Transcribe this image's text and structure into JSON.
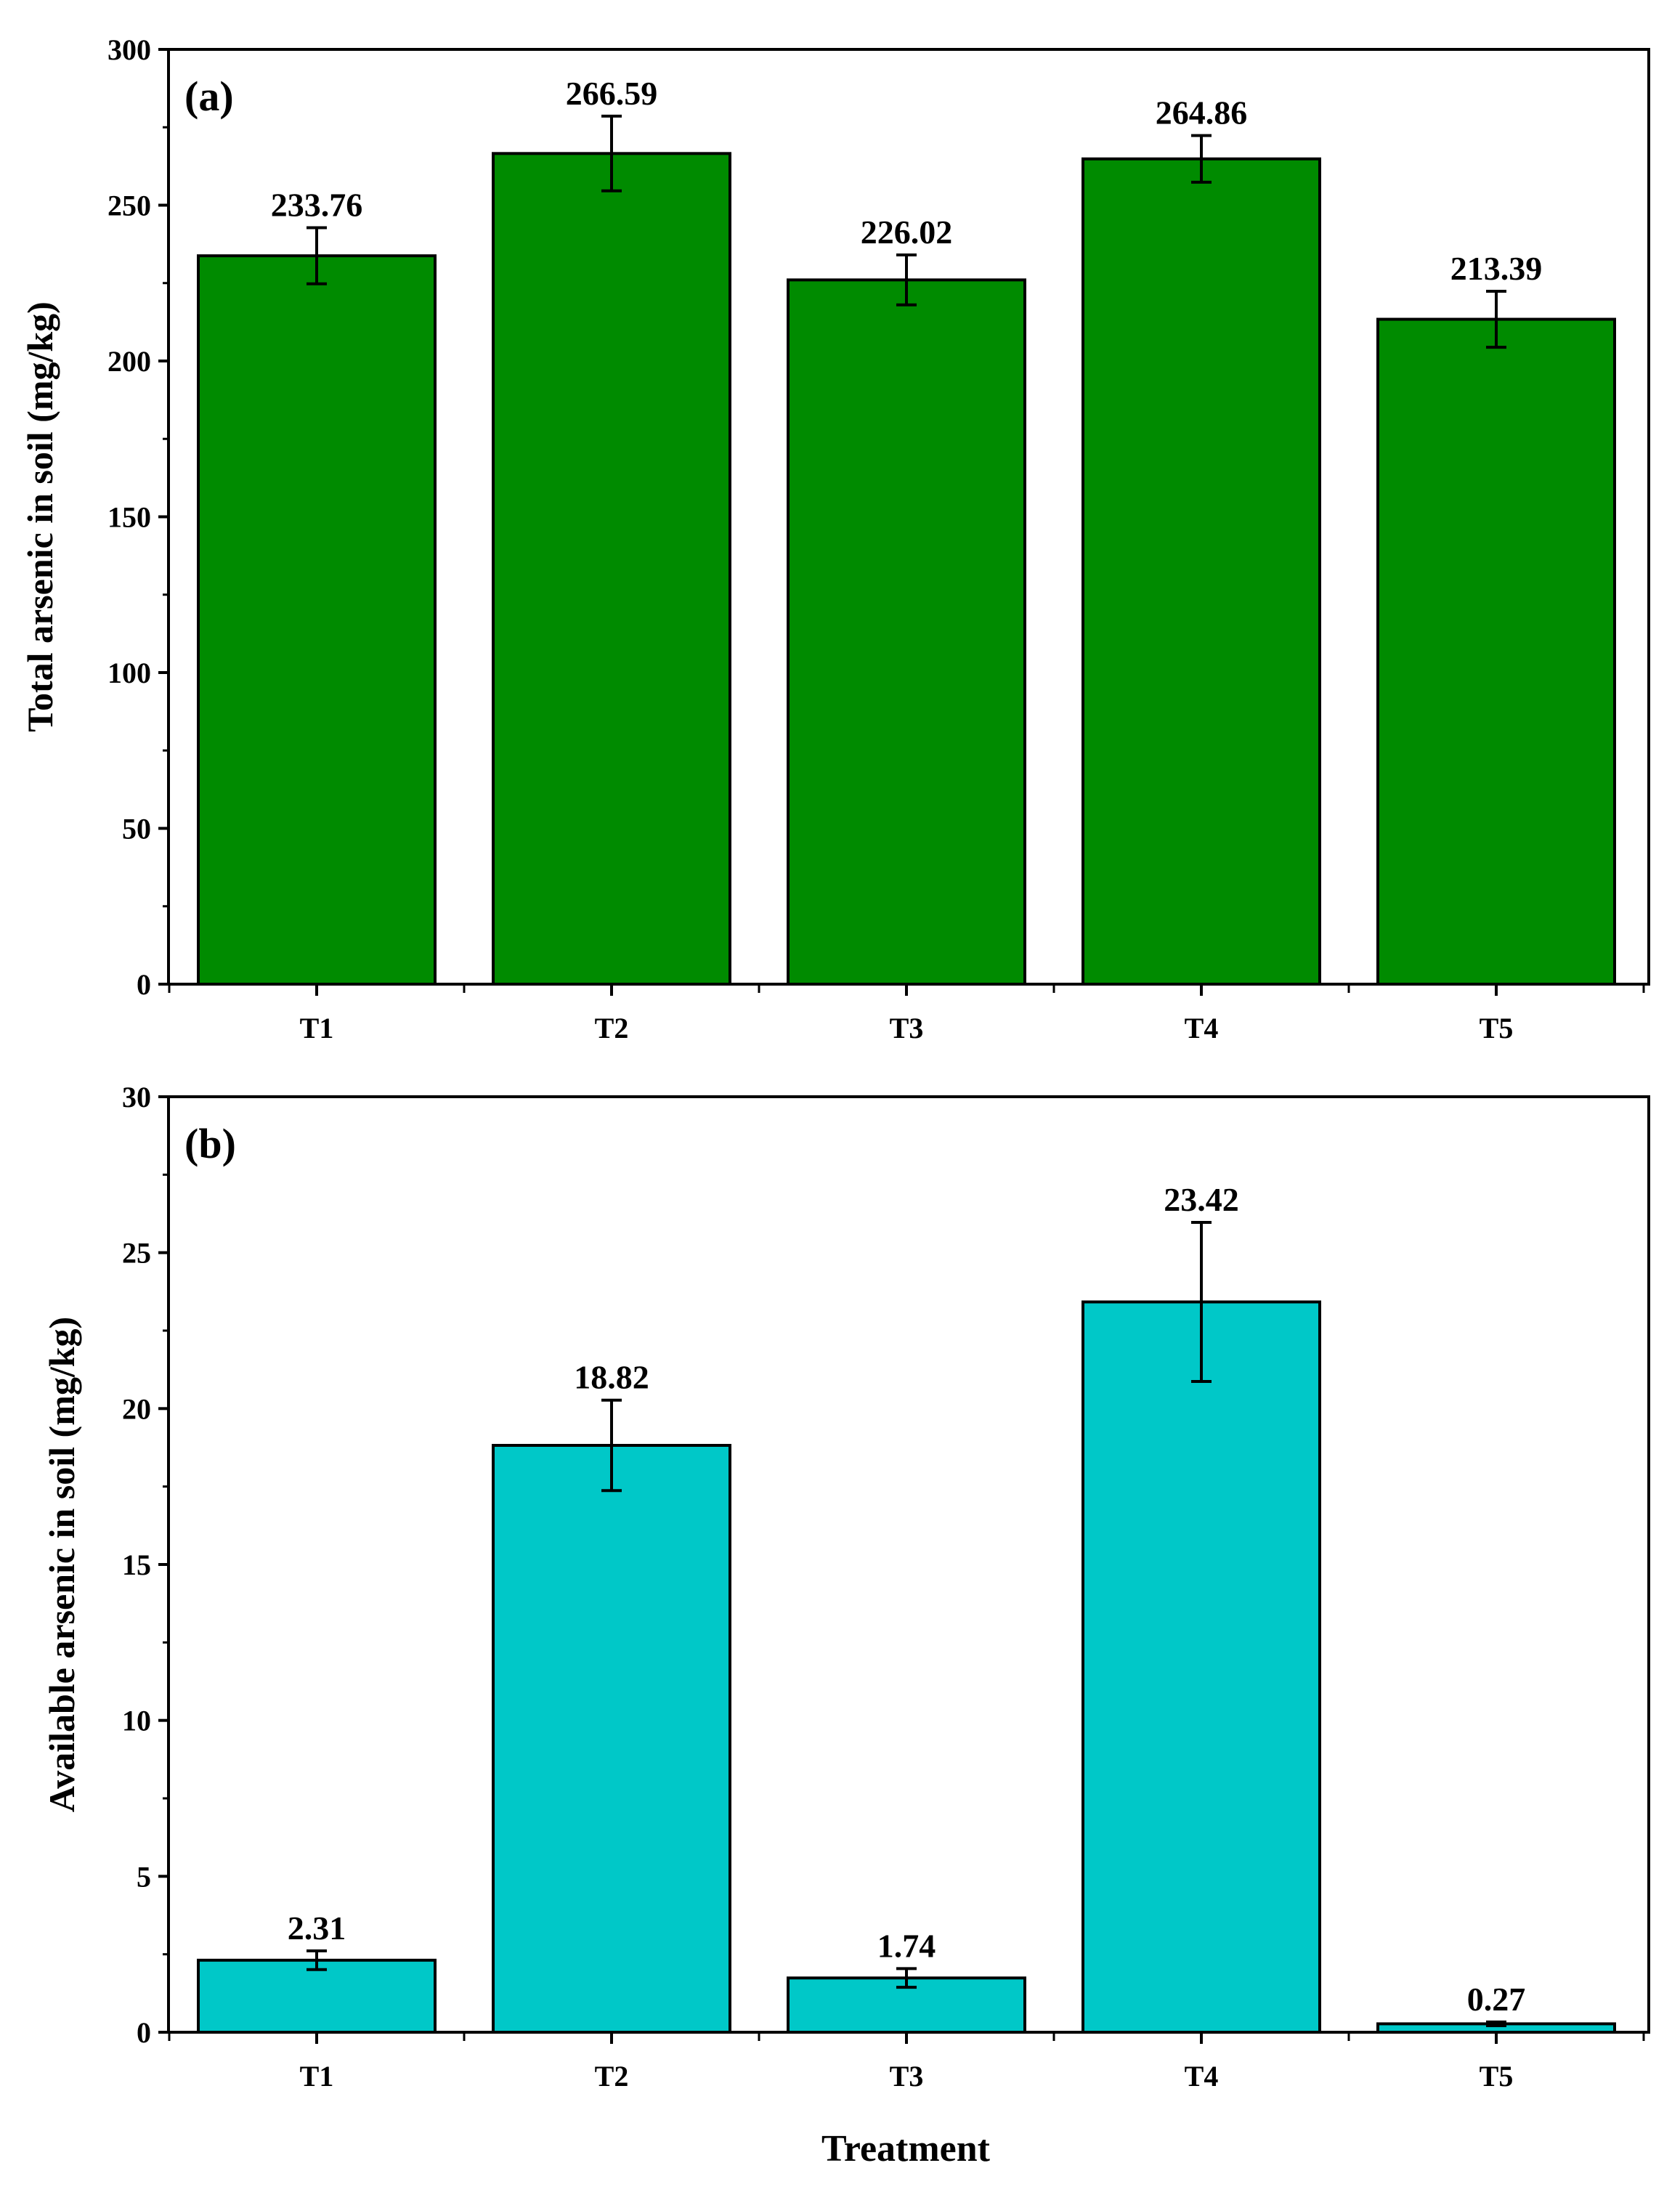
{
  "figure": {
    "xlabel": "Treatment"
  },
  "chart_data": [
    {
      "type": "bar",
      "panel_label": "(a)",
      "title": "",
      "xlabel": "",
      "ylabel": "Total arsenic in soil (mg/kg)",
      "categories": [
        "T1",
        "T2",
        "T3",
        "T4",
        "T5"
      ],
      "values": [
        233.76,
        266.59,
        226.02,
        264.86,
        213.39
      ],
      "value_labels": [
        "233.76",
        "266.59",
        "226.02",
        "264.86",
        "213.39"
      ],
      "errors": [
        9,
        12,
        8,
        7.5,
        9
      ],
      "ylim": [
        0,
        300
      ],
      "yticks": [
        0,
        50,
        100,
        150,
        200,
        250,
        300
      ],
      "bar_color": "#008B00",
      "grid": false
    },
    {
      "type": "bar",
      "panel_label": "(b)",
      "title": "",
      "xlabel": "Treatment",
      "ylabel": "Available arsenic in soil (mg/kg)",
      "categories": [
        "T1",
        "T2",
        "T3",
        "T4",
        "T5"
      ],
      "values": [
        2.31,
        18.82,
        1.74,
        23.42,
        0.27
      ],
      "value_labels": [
        "2.31",
        "18.82",
        "1.74",
        "23.42",
        "0.27"
      ],
      "errors": [
        0.3,
        1.45,
        0.3,
        2.55,
        0.06
      ],
      "ylim": [
        0,
        30
      ],
      "yticks": [
        0,
        5,
        10,
        15,
        20,
        25,
        30
      ],
      "bar_color": "#00C8C8",
      "grid": false
    }
  ]
}
